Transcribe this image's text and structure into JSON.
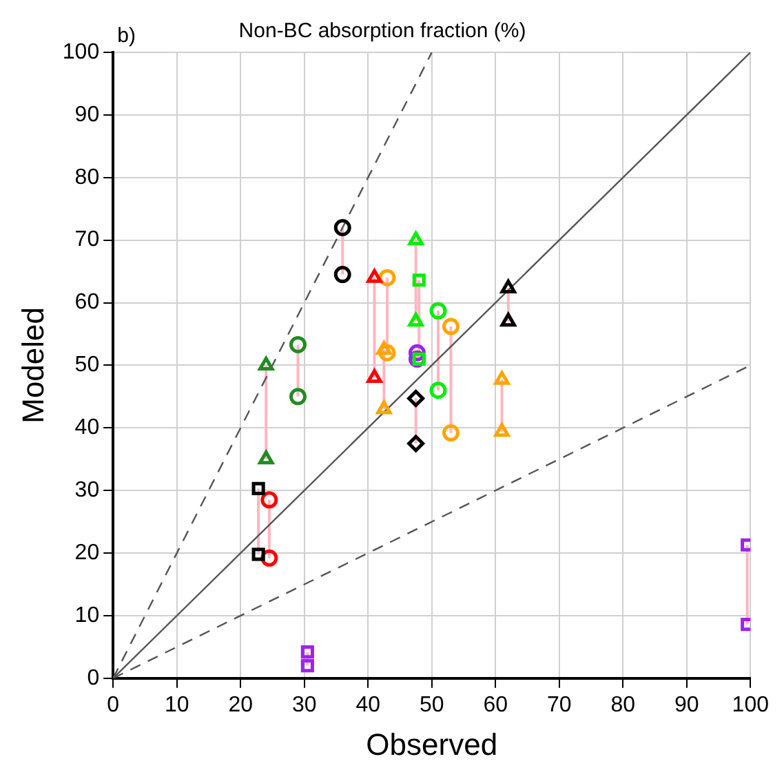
{
  "chart_data": {
    "type": "scatter",
    "title": "Non-BC absorption fraction (%)",
    "annotations": [
      "b)"
    ],
    "xlabel": "Observed",
    "ylabel": "Modeled",
    "xlim": [
      0,
      100
    ],
    "ylim": [
      0,
      100
    ],
    "xticks": [
      0,
      10,
      20,
      30,
      40,
      50,
      60,
      70,
      80,
      90,
      100
    ],
    "yticks": [
      0,
      10,
      20,
      30,
      40,
      50,
      60,
      70,
      80,
      90,
      100
    ],
    "grid": true,
    "legend": false,
    "series": [
      {
        "type": "line",
        "color": "#555555",
        "line_style": "solid",
        "x": [
          0,
          100
        ],
        "values": [
          0,
          100
        ]
      },
      {
        "type": "line",
        "color": "#555555",
        "line_style": "dashed",
        "x": [
          0,
          50
        ],
        "values": [
          0,
          100
        ]
      },
      {
        "type": "line",
        "color": "#555555",
        "line_style": "dashed",
        "x": [
          0,
          100
        ],
        "values": [
          0,
          50
        ]
      },
      {
        "type": "line",
        "color": "#ffb6c1",
        "line_style": "solid",
        "x": [
          36,
          36
        ],
        "values": [
          72,
          64.5
        ]
      },
      {
        "type": "line",
        "color": "#ffb6c1",
        "line_style": "solid",
        "x": [
          41,
          41
        ],
        "values": [
          64,
          48
        ]
      },
      {
        "type": "line",
        "color": "#ffb6c1",
        "line_style": "solid",
        "x": [
          43,
          43
        ],
        "values": [
          64,
          52
        ]
      },
      {
        "type": "line",
        "color": "#ffb6c1",
        "line_style": "solid",
        "x": [
          42.5,
          42.5
        ],
        "values": [
          52.5,
          43
        ]
      },
      {
        "type": "line",
        "color": "#ffb6c1",
        "line_style": "solid",
        "x": [
          24,
          24
        ],
        "values": [
          50,
          35
        ]
      },
      {
        "type": "line",
        "color": "#ffb6c1",
        "line_style": "solid",
        "x": [
          29,
          29
        ],
        "values": [
          53.3,
          45
        ]
      },
      {
        "type": "line",
        "color": "#ffb6c1",
        "line_style": "solid",
        "x": [
          22.8,
          22.8
        ],
        "values": [
          30.3,
          19.8
        ]
      },
      {
        "type": "line",
        "color": "#ffb6c1",
        "line_style": "solid",
        "x": [
          24.5,
          24.5
        ],
        "values": [
          28.5,
          19.2
        ]
      },
      {
        "type": "line",
        "color": "#ffb6c1",
        "line_style": "solid",
        "x": [
          47.5,
          47.5
        ],
        "values": [
          70,
          57
        ]
      },
      {
        "type": "line",
        "color": "#ffb6c1",
        "line_style": "solid",
        "x": [
          48,
          48
        ],
        "values": [
          63.6,
          51
        ]
      },
      {
        "type": "line",
        "color": "#ffb6c1",
        "line_style": "solid",
        "x": [
          47.7,
          47.7
        ],
        "values": [
          52,
          51
        ]
      },
      {
        "type": "line",
        "color": "#ffb6c1",
        "line_style": "solid",
        "x": [
          47.5,
          47.5
        ],
        "values": [
          44.7,
          37.5
        ]
      },
      {
        "type": "line",
        "color": "#ffb6c1",
        "line_style": "solid",
        "x": [
          51,
          51
        ],
        "values": [
          58.7,
          46
        ]
      },
      {
        "type": "line",
        "color": "#ffb6c1",
        "line_style": "solid",
        "x": [
          53,
          53
        ],
        "values": [
          56.2,
          39.2
        ]
      },
      {
        "type": "line",
        "color": "#ffb6c1",
        "line_style": "solid",
        "x": [
          62,
          62
        ],
        "values": [
          62.3,
          57
        ]
      },
      {
        "type": "line",
        "color": "#ffb6c1",
        "line_style": "solid",
        "x": [
          61,
          61
        ],
        "values": [
          47.7,
          39.4
        ]
      },
      {
        "type": "line",
        "color": "#ffb6c1",
        "line_style": "solid",
        "x": [
          99.5,
          99.5
        ],
        "values": [
          21.3,
          8.6
        ]
      },
      {
        "type": "line",
        "color": "#ffb6c1",
        "line_style": "solid",
        "x": [
          30.5,
          30.5
        ],
        "values": [
          4.2,
          2
        ]
      },
      {
        "color": "#000000",
        "marker": "circle",
        "x": [
          36,
          36
        ],
        "values": [
          72,
          64.5
        ]
      },
      {
        "color": "#ff0000",
        "marker": "triangle",
        "x": [
          41,
          41
        ],
        "values": [
          64,
          48
        ]
      },
      {
        "color": "#ffa500",
        "marker": "circle",
        "x": [
          43,
          43
        ],
        "values": [
          64,
          52
        ]
      },
      {
        "color": "#ffa500",
        "marker": "triangle",
        "x": [
          42.5,
          42.5
        ],
        "values": [
          52.5,
          43
        ]
      },
      {
        "color": "#228b22",
        "marker": "triangle",
        "x": [
          24,
          24
        ],
        "values": [
          50,
          35
        ]
      },
      {
        "color": "#228b22",
        "marker": "circle",
        "x": [
          29,
          29
        ],
        "values": [
          53.3,
          45
        ]
      },
      {
        "color": "#000000",
        "marker": "square",
        "x": [
          22.8,
          22.8
        ],
        "values": [
          30.3,
          19.8
        ]
      },
      {
        "color": "#ff0000",
        "marker": "circle",
        "x": [
          24.5,
          24.5
        ],
        "values": [
          28.5,
          19.2
        ]
      },
      {
        "color": "#00ee00",
        "marker": "triangle",
        "x": [
          47.5,
          47.5
        ],
        "values": [
          70,
          57
        ]
      },
      {
        "color": "#00ee00",
        "marker": "square",
        "x": [
          48,
          48
        ],
        "values": [
          63.6,
          51
        ]
      },
      {
        "color": "#a020f0",
        "marker": "circle",
        "x": [
          47.7,
          47.7
        ],
        "values": [
          52,
          51
        ]
      },
      {
        "color": "#000000",
        "marker": "diamond",
        "x": [
          47.5,
          47.5
        ],
        "values": [
          44.7,
          37.5
        ]
      },
      {
        "color": "#00ee00",
        "marker": "circle",
        "x": [
          51,
          51
        ],
        "values": [
          58.7,
          46
        ]
      },
      {
        "color": "#ffa500",
        "marker": "circle",
        "x": [
          53,
          53
        ],
        "values": [
          56.2,
          39.2
        ]
      },
      {
        "color": "#000000",
        "marker": "triangle",
        "x": [
          62,
          62
        ],
        "values": [
          62.3,
          57
        ]
      },
      {
        "color": "#ffa500",
        "marker": "triangle",
        "x": [
          61,
          61
        ],
        "values": [
          47.7,
          39.4
        ]
      },
      {
        "color": "#a020f0",
        "marker": "square",
        "x": [
          99.5,
          99.5
        ],
        "values": [
          21.3,
          8.6
        ]
      },
      {
        "color": "#a020f0",
        "marker": "square",
        "x": [
          30.5,
          30.5
        ],
        "values": [
          4.2,
          2
        ]
      }
    ]
  }
}
